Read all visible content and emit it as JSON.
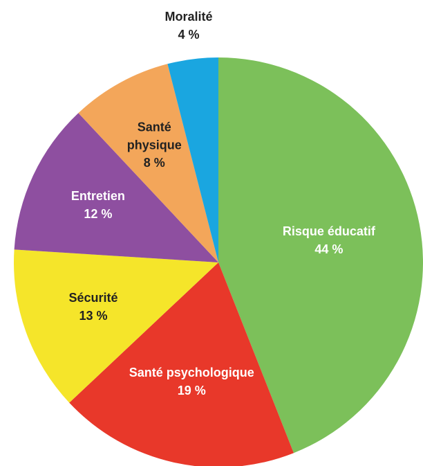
{
  "chart_data": {
    "type": "pie",
    "categories": [
      "Risque éducatif",
      "Santé psychologique",
      "Sécurité",
      "Entretien",
      "Santé physique",
      "Moralité"
    ],
    "values": [
      44,
      19,
      13,
      12,
      8,
      4
    ],
    "value_labels": [
      "44 %",
      "19 %",
      "13 %",
      "12 %",
      "8 %",
      "4 %"
    ],
    "colors": [
      "#7cc05a",
      "#e8382a",
      "#f5e52a",
      "#8e4fa0",
      "#f3a65a",
      "#1aa6e0"
    ]
  }
}
